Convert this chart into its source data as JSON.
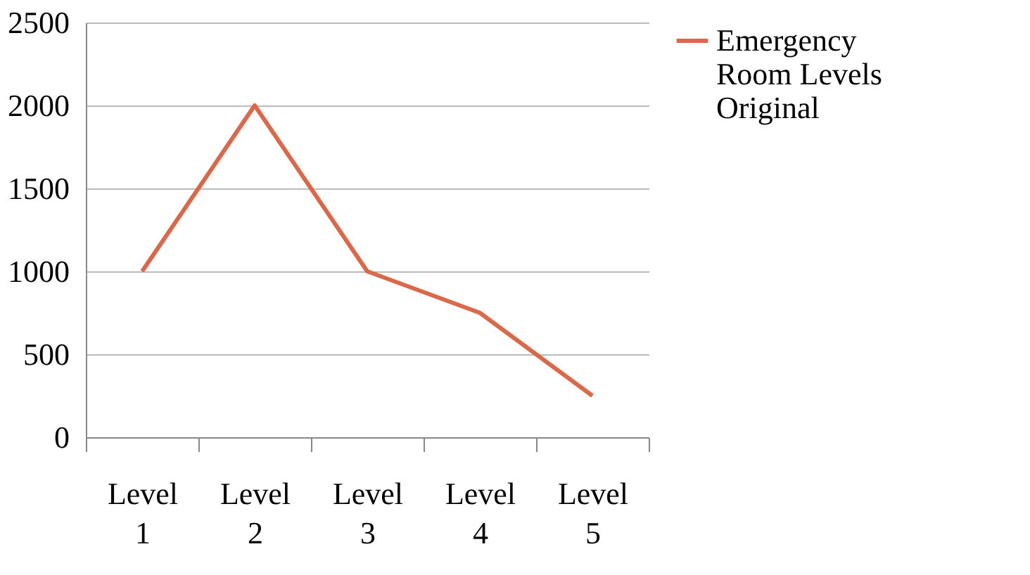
{
  "chart_data": {
    "type": "line",
    "categories": [
      "Level 1",
      "Level 2",
      "Level 3",
      "Level 4",
      "Level 5"
    ],
    "series": [
      {
        "name": "Emergency Room Levels Original",
        "color": "#d9694a",
        "values": [
          1000,
          2000,
          1000,
          750,
          250
        ]
      }
    ],
    "ylim": [
      0,
      2500
    ],
    "yticks": [
      0,
      500,
      1000,
      1500,
      2000,
      2500
    ],
    "grid": "y",
    "legend": "right",
    "marker": "none",
    "line_style": "solid"
  }
}
